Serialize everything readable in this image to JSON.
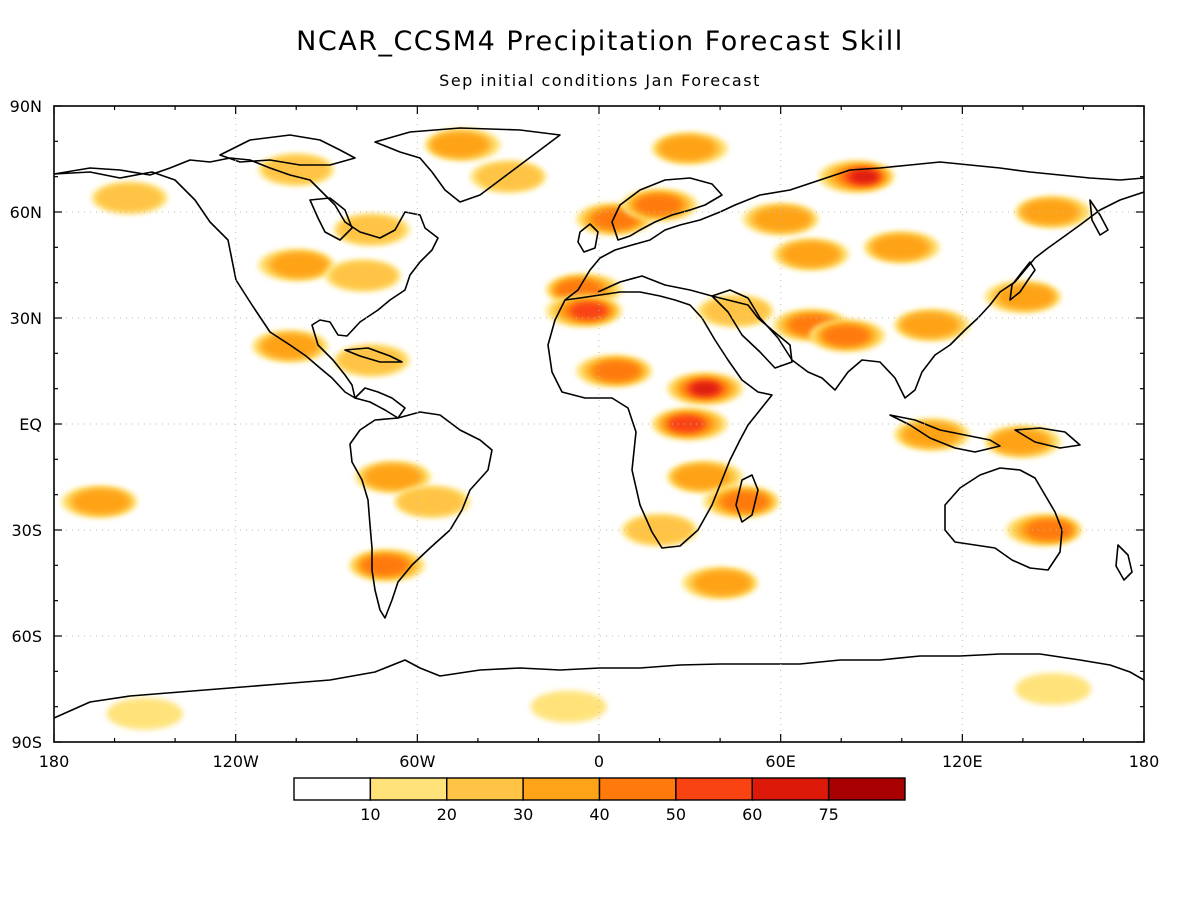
{
  "title": "NCAR_CCSM4 Precipitation Forecast Skill",
  "subtitle": "Sep initial conditions  Jan Forecast",
  "map": {
    "projection": "equirectangular",
    "lon_range": [
      -180,
      180
    ],
    "lat_range": [
      -90,
      90
    ],
    "grid": "dotted",
    "lat_labels": [
      "90N",
      "60N",
      "30N",
      "EQ",
      "30S",
      "60S",
      "90S"
    ],
    "lon_labels": [
      "180",
      "120W",
      "60W",
      "0",
      "60E",
      "120E",
      "180"
    ]
  },
  "colorbar": {
    "labels": [
      "10",
      "20",
      "30",
      "40",
      "50",
      "60",
      "75"
    ],
    "colors": [
      "#ffffff",
      "#ffe37a",
      "#ffc445",
      "#ffa319",
      "#ff7a0a",
      "#f94312",
      "#dd1a0a",
      "#a80000"
    ]
  },
  "skill_regions": [
    {
      "name": "greenland-north",
      "lon": -45,
      "lat": 79,
      "level": 3
    },
    {
      "name": "greenland-east",
      "lon": -30,
      "lat": 70,
      "level": 2
    },
    {
      "name": "arctic-canada",
      "lon": -100,
      "lat": 72,
      "level": 2
    },
    {
      "name": "alaska",
      "lon": -155,
      "lat": 64,
      "level": 2
    },
    {
      "name": "canada-east",
      "lon": -75,
      "lat": 55,
      "level": 2
    },
    {
      "name": "us-midwest",
      "lon": -100,
      "lat": 45,
      "level": 3
    },
    {
      "name": "us-east",
      "lon": -78,
      "lat": 42,
      "level": 2
    },
    {
      "name": "mexico",
      "lon": -102,
      "lat": 22,
      "level": 3
    },
    {
      "name": "caribbean",
      "lon": -75,
      "lat": 18,
      "level": 2
    },
    {
      "name": "iberia",
      "lon": -5,
      "lat": 38,
      "level": 4
    },
    {
      "name": "morocco",
      "lon": -5,
      "lat": 32,
      "level": 5
    },
    {
      "name": "north-sea",
      "lon": 5,
      "lat": 58,
      "level": 4
    },
    {
      "name": "scandinavia",
      "lon": 20,
      "lat": 62,
      "level": 4
    },
    {
      "name": "barents",
      "lon": 30,
      "lat": 78,
      "level": 3
    },
    {
      "name": "central-siberia",
      "lon": 85,
      "lat": 70,
      "level": 6
    },
    {
      "name": "west-siberia",
      "lon": 60,
      "lat": 58,
      "level": 3
    },
    {
      "name": "kazakhstan",
      "lon": 70,
      "lat": 48,
      "level": 3
    },
    {
      "name": "mongolia",
      "lon": 100,
      "lat": 50,
      "level": 3
    },
    {
      "name": "east-siberia",
      "lon": 150,
      "lat": 60,
      "level": 3
    },
    {
      "name": "middle-east",
      "lon": 45,
      "lat": 32,
      "level": 2
    },
    {
      "name": "pakistan",
      "lon": 70,
      "lat": 28,
      "level": 4
    },
    {
      "name": "india",
      "lon": 82,
      "lat": 25,
      "level": 4
    },
    {
      "name": "china-south",
      "lon": 110,
      "lat": 28,
      "level": 3
    },
    {
      "name": "japan",
      "lon": 140,
      "lat": 36,
      "level": 3
    },
    {
      "name": "sahara-west",
      "lon": 5,
      "lat": 15,
      "level": 4
    },
    {
      "name": "east-africa",
      "lon": 35,
      "lat": 10,
      "level": 6
    },
    {
      "name": "east-africa-south",
      "lon": 30,
      "lat": 0,
      "level": 5
    },
    {
      "name": "mozambique",
      "lon": 35,
      "lat": -15,
      "level": 3
    },
    {
      "name": "madagascar",
      "lon": 47,
      "lat": -22,
      "level": 4
    },
    {
      "name": "southern-africa",
      "lon": 20,
      "lat": -30,
      "level": 2
    },
    {
      "name": "indonesia",
      "lon": 110,
      "lat": -3,
      "level": 3
    },
    {
      "name": "new-guinea",
      "lon": 140,
      "lat": -5,
      "level": 3
    },
    {
      "name": "australia-east",
      "lon": 147,
      "lat": -30,
      "level": 4
    },
    {
      "name": "south-pacific",
      "lon": -165,
      "lat": -22,
      "level": 3
    },
    {
      "name": "andes",
      "lon": -68,
      "lat": -15,
      "level": 3
    },
    {
      "name": "patagonia",
      "lon": -70,
      "lat": -40,
      "level": 4
    },
    {
      "name": "brazil",
      "lon": -55,
      "lat": -22,
      "level": 2
    },
    {
      "name": "south-atlantic",
      "lon": 40,
      "lat": -45,
      "level": 3
    },
    {
      "name": "antarctica-ross",
      "lon": -150,
      "lat": -82,
      "level": 1
    },
    {
      "name": "antarctica-weddell",
      "lon": -10,
      "lat": -80,
      "level": 1
    },
    {
      "name": "antarctica-east",
      "lon": 150,
      "lat": -75,
      "level": 1
    }
  ]
}
